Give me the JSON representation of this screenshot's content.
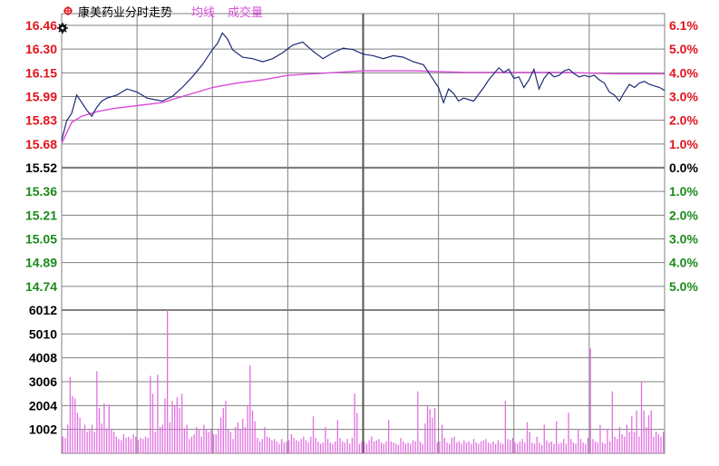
{
  "header": {
    "title": "康美药业分时走势",
    "legend_avg": "均线",
    "legend_vol": "成交量"
  },
  "colors": {
    "up": "#e0131d",
    "down": "#1a8a1a",
    "neutral": "#000000",
    "price_line": "#1e2a78",
    "avg_line": "#d94fd9",
    "volume": "#e070e0",
    "grid": "#808080"
  },
  "chart_data": {
    "type": "line",
    "title": "康美药业分时走势",
    "prev_close": 15.52,
    "price_axis": {
      "up_ticks": [
        "16.46",
        "16.30",
        "16.15",
        "15.99",
        "15.83",
        "15.68"
      ],
      "base": "15.52",
      "down_ticks": [
        "15.36",
        "15.21",
        "15.05",
        "14.89",
        "14.74"
      ]
    },
    "pct_axis": {
      "up_ticks": [
        "6.1%",
        "5.0%",
        "4.0%",
        "3.0%",
        "2.0%",
        "1.0%"
      ],
      "base": "0.0%",
      "down_ticks": [
        "1.0%",
        "2.0%",
        "3.0%",
        "4.0%",
        "5.0%"
      ]
    },
    "ylim": [
      14.58,
      16.46
    ],
    "volume_axis": {
      "ticks": [
        "6012",
        "5010",
        "4008",
        "3006",
        "2004",
        "1002"
      ],
      "max": 6012
    },
    "x_minutes": 240,
    "series": [
      {
        "name": "分时",
        "points": [
          [
            0,
            15.7
          ],
          [
            2,
            15.83
          ],
          [
            4,
            15.88
          ],
          [
            6,
            16.0
          ],
          [
            8,
            15.95
          ],
          [
            10,
            15.9
          ],
          [
            12,
            15.86
          ],
          [
            14,
            15.92
          ],
          [
            16,
            15.96
          ],
          [
            18,
            15.98
          ],
          [
            22,
            16.0
          ],
          [
            26,
            16.04
          ],
          [
            30,
            16.02
          ],
          [
            34,
            15.98
          ],
          [
            40,
            15.96
          ],
          [
            44,
            15.99
          ],
          [
            48,
            16.05
          ],
          [
            52,
            16.12
          ],
          [
            56,
            16.2
          ],
          [
            60,
            16.3
          ],
          [
            62,
            16.34
          ],
          [
            64,
            16.41
          ],
          [
            66,
            16.37
          ],
          [
            68,
            16.3
          ],
          [
            72,
            16.25
          ],
          [
            76,
            16.24
          ],
          [
            80,
            16.22
          ],
          [
            84,
            16.24
          ],
          [
            88,
            16.28
          ],
          [
            92,
            16.33
          ],
          [
            96,
            16.35
          ],
          [
            100,
            16.29
          ],
          [
            104,
            16.24
          ],
          [
            108,
            16.28
          ],
          [
            112,
            16.31
          ],
          [
            116,
            16.3
          ],
          [
            120,
            16.27
          ],
          [
            124,
            16.26
          ],
          [
            128,
            16.24
          ],
          [
            132,
            16.26
          ],
          [
            136,
            16.25
          ],
          [
            140,
            16.22
          ],
          [
            144,
            16.2
          ],
          [
            148,
            16.1
          ],
          [
            150,
            16.05
          ],
          [
            152,
            15.95
          ],
          [
            154,
            16.04
          ],
          [
            156,
            16.01
          ],
          [
            158,
            15.96
          ],
          [
            160,
            15.98
          ],
          [
            164,
            15.96
          ],
          [
            168,
            16.05
          ],
          [
            170,
            16.1
          ],
          [
            172,
            16.14
          ],
          [
            174,
            16.18
          ],
          [
            176,
            16.15
          ],
          [
            178,
            16.17
          ],
          [
            180,
            16.11
          ],
          [
            182,
            16.12
          ],
          [
            184,
            16.05
          ],
          [
            186,
            16.1
          ],
          [
            188,
            16.17
          ],
          [
            190,
            16.04
          ],
          [
            192,
            16.11
          ],
          [
            194,
            16.15
          ],
          [
            196,
            16.12
          ],
          [
            198,
            16.13
          ],
          [
            200,
            16.16
          ],
          [
            202,
            16.17
          ],
          [
            204,
            16.14
          ],
          [
            206,
            16.12
          ],
          [
            208,
            16.13
          ],
          [
            210,
            16.12
          ],
          [
            212,
            16.13
          ],
          [
            214,
            16.1
          ],
          [
            216,
            16.08
          ],
          [
            218,
            16.02
          ],
          [
            220,
            16.0
          ],
          [
            222,
            15.96
          ],
          [
            224,
            16.02
          ],
          [
            226,
            16.07
          ],
          [
            228,
            16.05
          ],
          [
            230,
            16.08
          ],
          [
            232,
            16.09
          ],
          [
            234,
            16.07
          ],
          [
            236,
            16.06
          ],
          [
            238,
            16.05
          ],
          [
            240,
            16.03
          ]
        ]
      },
      {
        "name": "均线",
        "points": [
          [
            0,
            15.68
          ],
          [
            4,
            15.82
          ],
          [
            8,
            15.86
          ],
          [
            14,
            15.89
          ],
          [
            20,
            15.91
          ],
          [
            30,
            15.93
          ],
          [
            40,
            15.95
          ],
          [
            50,
            16.0
          ],
          [
            60,
            16.05
          ],
          [
            70,
            16.08
          ],
          [
            80,
            16.1
          ],
          [
            90,
            16.13
          ],
          [
            100,
            16.14
          ],
          [
            110,
            16.15
          ],
          [
            120,
            16.16
          ],
          [
            140,
            16.16
          ],
          [
            160,
            16.15
          ],
          [
            180,
            16.15
          ],
          [
            200,
            16.15
          ],
          [
            220,
            16.14
          ],
          [
            240,
            16.14
          ]
        ]
      },
      {
        "name": "成交量",
        "values": [
          700,
          650,
          1200,
          3200,
          2400,
          2300,
          1700,
          1500,
          1000,
          1200,
          900,
          1000,
          1200,
          900,
          3450,
          1900,
          1250,
          2100,
          1050,
          2050,
          1000,
          900,
          700,
          600,
          550,
          800,
          650,
          700,
          600,
          800,
          700,
          550,
          650,
          600,
          700,
          650,
          3250,
          2500,
          900,
          3300,
          1100,
          1200,
          2300,
          6012,
          1300,
          2200,
          2000,
          2350,
          1900,
          2500,
          1050,
          1200,
          600,
          700,
          800,
          1100,
          1000,
          700,
          1200,
          1000,
          900,
          1050,
          800,
          800,
          1000,
          1500,
          1900,
          2200,
          1000,
          900,
          600,
          1100,
          1300,
          1000,
          1450,
          1100,
          2000,
          3700,
          1800,
          1350,
          650,
          500,
          600,
          1100,
          700,
          650,
          550,
          600,
          500,
          400,
          600,
          450,
          500,
          550,
          800,
          650,
          550,
          500,
          600,
          700,
          550,
          450,
          700,
          1550,
          650,
          500,
          400,
          450,
          1100,
          600,
          450,
          400,
          500,
          1400,
          650,
          500,
          450,
          600,
          400,
          650,
          2500,
          1700,
          400,
          500,
          500,
          400,
          550,
          700,
          500,
          550,
          600,
          450,
          400,
          500,
          1400,
          500,
          450,
          400,
          350,
          650,
          500,
          400,
          450,
          400,
          550,
          500,
          2600,
          500,
          400,
          1250,
          2000,
          1850,
          1500,
          1900,
          450,
          500,
          1200,
          650,
          450,
          400,
          650,
          700,
          450,
          500,
          400,
          550,
          450,
          500,
          400,
          600,
          450,
          400,
          500,
          550,
          600,
          450,
          400,
          500,
          400,
          550,
          450,
          400,
          2200,
          600,
          550,
          650,
          450,
          400,
          500,
          600,
          450,
          1300,
          900,
          450,
          400,
          700,
          450,
          350,
          1200,
          550,
          450,
          500,
          400,
          1350,
          400,
          450,
          600,
          400,
          1700,
          600,
          450,
          400,
          1000,
          600,
          450,
          400,
          650,
          4400,
          600,
          500,
          450,
          1200,
          450,
          400,
          1000,
          500,
          2600,
          700,
          600,
          1100,
          800,
          700,
          1200,
          900,
          1550,
          900,
          1800,
          700,
          3000,
          1800,
          1100,
          1600,
          1800,
          700,
          900,
          800,
          700,
          900
        ]
      }
    ]
  }
}
